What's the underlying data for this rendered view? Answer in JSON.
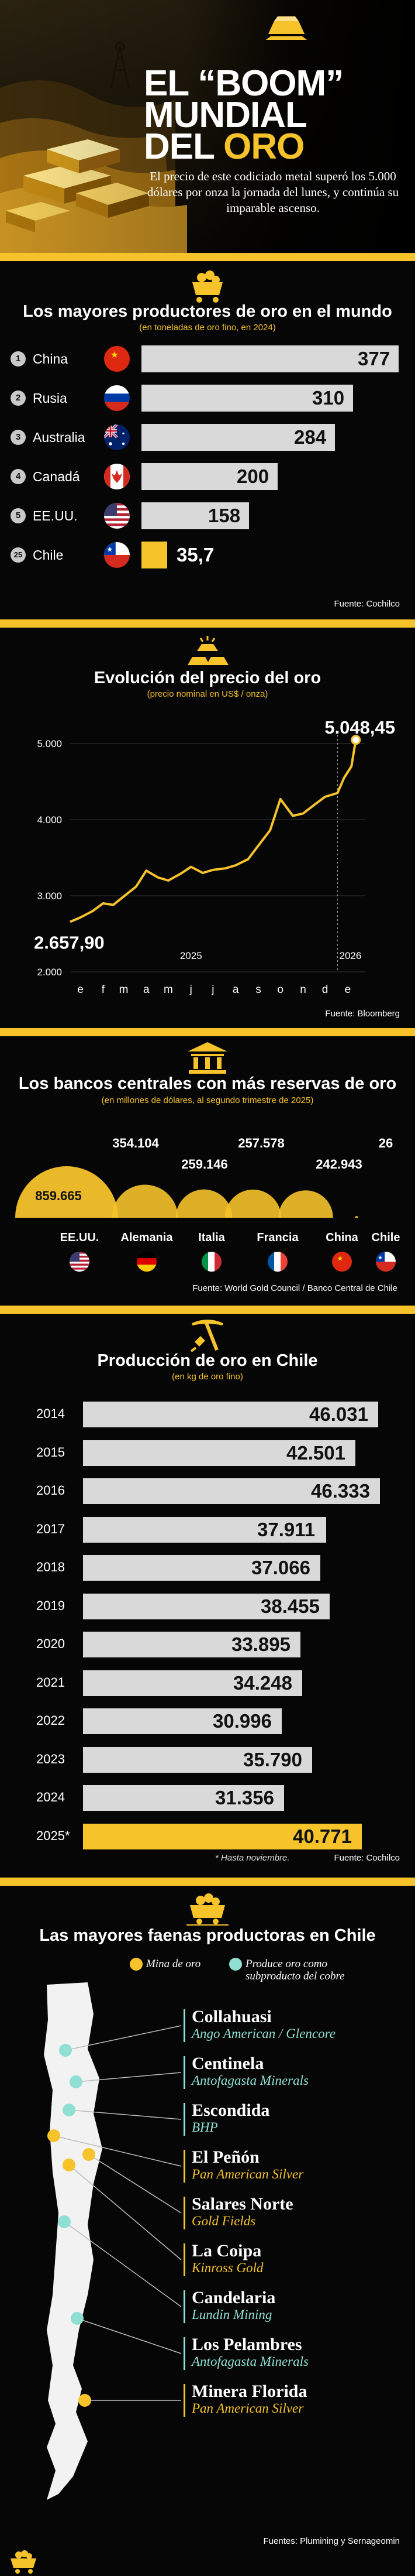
{
  "hero": {
    "title_line1": "EL “BOOM”",
    "title_line2": "MUNDIAL",
    "title_line3_a": "DEL ",
    "title_line3_b": "ORO",
    "text": "El precio de este codiciado metal superó los 5.000 dólares por onza la jornada del lunes, y continúa su imparable ascenso."
  },
  "producers": {
    "title": "Los mayores productores de oro en el mundo",
    "subtitle": "(en  toneladas de oro fino, en 2024)",
    "source": "Fuente: Cochilco",
    "icon": "gold-cart-icon"
  },
  "price": {
    "title": "Evolución del precio del oro",
    "subtitle": "(precio nominal en US$ / onza)",
    "source": "Fuente: Bloomberg",
    "icon": "gold-bars-icon",
    "start_label": "2.657,90",
    "end_label": "5.048,45",
    "year_2025": "2025",
    "year_2026": "2026"
  },
  "banks": {
    "title": "Los bancos centrales con más reservas de oro",
    "subtitle": "(en millones de dólares, al segundo trimestre de 2025)",
    "source": "Fuente: World Gold Council / Banco Central de Chile",
    "icon": "bank-icon",
    "items": [
      {
        "country": "EE.UU.",
        "value": "859.665"
      },
      {
        "country": "Alemania",
        "value": "354.104"
      },
      {
        "country": "Italia",
        "value": "259.146"
      },
      {
        "country": "Francia",
        "value": "257.578"
      },
      {
        "country": "China",
        "value": "242.943"
      },
      {
        "country": "Chile",
        "value": "26"
      }
    ]
  },
  "chile_prod": {
    "title": "Producción de oro en Chile",
    "subtitle": "(en kg de oro fino)",
    "note": "* Hasta noviembre.",
    "source": "Fuente: Cochilco",
    "icon": "pickaxe-icon"
  },
  "mines": {
    "title": "Las mayores faenas productoras en Chile",
    "icon": "mine-cart-icon",
    "legend_gold": "Mina de oro",
    "legend_teal": "Produce oro como subproducto del cobre",
    "source": "Fuentes: Plumining y Sernageomin",
    "items": [
      {
        "name": "Collahuasi",
        "company": "Ango American / Glencore",
        "type": "teal"
      },
      {
        "name": "Centinela",
        "company": "Antofagasta Minerals",
        "type": "teal"
      },
      {
        "name": "Escondida",
        "company": "BHP",
        "type": "teal"
      },
      {
        "name": "El Peñón",
        "company": "Pan American Silver",
        "type": "gold"
      },
      {
        "name": "Salares Norte",
        "company": "Gold Fields",
        "type": "gold"
      },
      {
        "name": "La Coipa",
        "company": "Kinross Gold",
        "type": "gold"
      },
      {
        "name": "Candelaria",
        "company": "Lundin Mining",
        "type": "teal"
      },
      {
        "name": "Los Pelambres",
        "company": "Antofagasta Minerals",
        "type": "teal"
      },
      {
        "name": "Minera Florida",
        "company": "Pan American Silver",
        "type": "gold"
      }
    ]
  },
  "colors": {
    "gold": "#f6c32b",
    "teal": "#8fe0d2",
    "bar": "#d9d9d9"
  },
  "chart_data": [
    {
      "type": "bar",
      "title": "Los mayores productores de oro en el mundo",
      "subtitle": "(en  toneladas de oro fino, en 2024)",
      "categories": [
        "China",
        "Rusia",
        "Australia",
        "Canadá",
        "EE.UU.",
        "Chile"
      ],
      "ranks": [
        "1",
        "2",
        "3",
        "4",
        "5",
        "25"
      ],
      "values": [
        377,
        310,
        284,
        200,
        158,
        35.7
      ],
      "labels": [
        "377",
        "310",
        "284",
        "200",
        "158",
        "35,7"
      ]
    },
    {
      "type": "line",
      "title": "Evolución del precio del oro",
      "ylabel": "(precio nominal en US$ / onza)",
      "ylim": [
        2000,
        5000
      ],
      "yticks": [
        "2.000",
        "3.000",
        "4.000",
        "5.000"
      ],
      "xticks": [
        "e",
        "f",
        "m",
        "a",
        "m",
        "j",
        "j",
        "a",
        "s",
        "o",
        "n",
        "d",
        "e"
      ],
      "x": [
        "2025-01-01",
        "2025-01-15",
        "2025-02-01",
        "2025-02-15",
        "2025-03-01",
        "2025-03-15",
        "2025-04-01",
        "2025-04-15",
        "2025-05-01",
        "2025-05-15",
        "2025-06-01",
        "2025-06-15",
        "2025-07-01",
        "2025-07-15",
        "2025-08-01",
        "2025-08-15",
        "2025-09-01",
        "2025-09-15",
        "2025-10-01",
        "2025-10-15",
        "2025-11-01",
        "2025-11-15",
        "2025-12-01",
        "2025-12-15",
        "2026-01-01",
        "2026-01-10",
        "2026-01-20",
        "2026-01-26"
      ],
      "y": [
        2657.9,
        2715,
        2800,
        2900,
        2880,
        2990,
        3120,
        3330,
        3240,
        3200,
        3290,
        3380,
        3300,
        3340,
        3360,
        3400,
        3480,
        3660,
        3860,
        4270,
        4050,
        4080,
        4200,
        4300,
        4350,
        4550,
        4700,
        5048.45
      ]
    },
    {
      "type": "bubble",
      "title": "Los bancos centrales con más reservas de oro",
      "categories": [
        "EE.UU.",
        "Alemania",
        "Italia",
        "Francia",
        "China",
        "Chile"
      ],
      "values": [
        859665,
        354104,
        259146,
        257578,
        242943,
        26
      ]
    },
    {
      "type": "bar",
      "title": "Producción de oro en Chile",
      "categories": [
        "2014",
        "2015",
        "2016",
        "2017",
        "2018",
        "2019",
        "2020",
        "2021",
        "2022",
        "2023",
        "2024",
        "2025*"
      ],
      "values": [
        46031,
        42501,
        46333,
        37911,
        37066,
        38455,
        33895,
        34248,
        30996,
        35790,
        31356,
        40771
      ],
      "labels": [
        "46.031",
        "42.501",
        "46.333",
        "37.911",
        "37.066",
        "38.455",
        "33.895",
        "34.248",
        "30.996",
        "35.790",
        "31.356",
        "40.771"
      ]
    }
  ]
}
